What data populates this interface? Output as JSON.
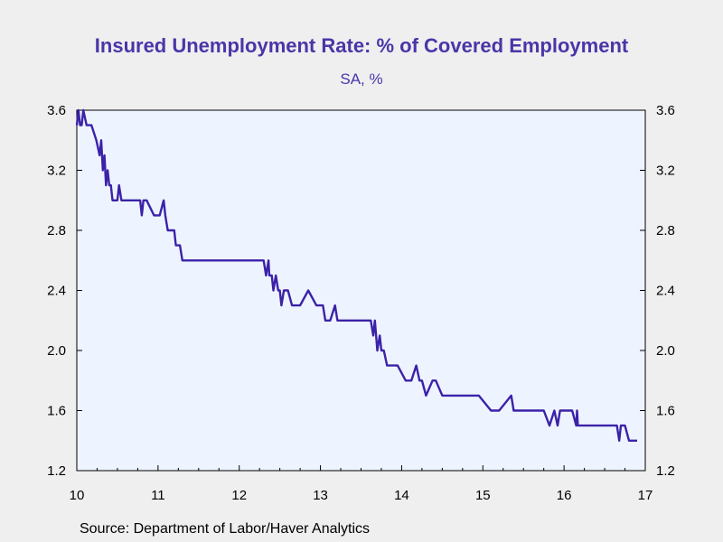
{
  "chart_data": {
    "type": "line",
    "title": "Insured Unemployment Rate: % of Covered Employment",
    "subtitle": "SA, %",
    "source": "Source:  Department of Labor/Haver Analytics",
    "xlabel": "",
    "ylabel": "",
    "xlim": [
      2010,
      2017
    ],
    "ylim": [
      1.2,
      3.6
    ],
    "x_ticks": [
      "10",
      "11",
      "12",
      "13",
      "14",
      "15",
      "16",
      "17"
    ],
    "y_ticks": [
      "1.2",
      "1.6",
      "2.0",
      "2.4",
      "2.8",
      "3.2",
      "3.6"
    ],
    "grid": false,
    "line_color": "#3b22a8",
    "plot_background": "#eef4ff",
    "series": [
      {
        "x": [
          2010.0,
          2010.02,
          2010.04,
          2010.06,
          2010.08,
          2010.12,
          2010.14,
          2010.16,
          2010.18,
          2010.24,
          2010.28,
          2010.3,
          2010.32,
          2010.34,
          2010.36,
          2010.38,
          2010.4,
          2010.42,
          2010.44,
          2010.46,
          2010.48,
          2010.5,
          2010.52,
          2010.55,
          2010.62,
          2010.7,
          2010.78,
          2010.8,
          2010.82,
          2010.86,
          2010.95,
          2011.02,
          2011.07,
          2011.09,
          2011.12,
          2011.2,
          2011.22,
          2011.25,
          2011.27,
          2011.3,
          2011.33,
          2011.35,
          2011.38,
          2011.4,
          2011.42,
          2011.47,
          2011.5,
          2011.52,
          2011.55,
          2011.6,
          2011.65,
          2011.75,
          2011.9,
          2012.1,
          2012.3,
          2012.33,
          2012.36,
          2012.37,
          2012.4,
          2012.42,
          2012.45,
          2012.48,
          2012.5,
          2012.52,
          2012.55,
          2012.6,
          2012.65,
          2012.68,
          2012.72,
          2012.75,
          2012.85,
          2012.95,
          2013.0,
          2013.03,
          2013.06,
          2013.12,
          2013.18,
          2013.21,
          2013.24,
          2013.27,
          2013.35,
          2013.5,
          2013.62,
          2013.65,
          2013.67,
          2013.7,
          2013.73,
          2013.75,
          2013.78,
          2013.82,
          2013.88,
          2013.95,
          2014.05,
          2014.12,
          2014.18,
          2014.22,
          2014.25,
          2014.3,
          2014.38,
          2014.42,
          2014.5,
          2014.55,
          2014.58,
          2014.65,
          2014.8,
          2014.95,
          2015.1,
          2015.2,
          2015.35,
          2015.38,
          2015.4,
          2015.45,
          2015.55,
          2015.65,
          2015.75,
          2015.82,
          2015.88,
          2015.92,
          2015.95,
          2016.05,
          2016.1,
          2016.15,
          2016.16,
          2016.17,
          2016.2,
          2016.3,
          2016.4,
          2016.5,
          2016.6,
          2016.65,
          2016.68,
          2016.7,
          2016.75,
          2016.8,
          2016.9
        ],
        "y": [
          3.5,
          3.6,
          3.5,
          3.5,
          3.6,
          3.5,
          3.5,
          3.5,
          3.5,
          3.4,
          3.3,
          3.4,
          3.2,
          3.3,
          3.1,
          3.2,
          3.1,
          3.1,
          3.0,
          3.0,
          3.0,
          3.0,
          3.1,
          3.0,
          3.0,
          3.0,
          3.0,
          2.9,
          3.0,
          3.0,
          2.9,
          2.9,
          3.0,
          2.9,
          2.8,
          2.8,
          2.7,
          2.7,
          2.7,
          2.6,
          2.6,
          2.6,
          2.6,
          2.6,
          2.6,
          2.6,
          2.6,
          2.6,
          2.6,
          2.6,
          2.6,
          2.6,
          2.6,
          2.6,
          2.6,
          2.5,
          2.6,
          2.5,
          2.5,
          2.4,
          2.5,
          2.4,
          2.4,
          2.3,
          2.4,
          2.4,
          2.3,
          2.3,
          2.3,
          2.3,
          2.4,
          2.3,
          2.3,
          2.3,
          2.2,
          2.2,
          2.3,
          2.2,
          2.2,
          2.2,
          2.2,
          2.2,
          2.2,
          2.1,
          2.2,
          2.0,
          2.1,
          2.0,
          2.0,
          1.9,
          1.9,
          1.9,
          1.8,
          1.8,
          1.9,
          1.8,
          1.8,
          1.7,
          1.8,
          1.8,
          1.7,
          1.7,
          1.7,
          1.7,
          1.7,
          1.7,
          1.6,
          1.6,
          1.7,
          1.6,
          1.6,
          1.6,
          1.6,
          1.6,
          1.6,
          1.5,
          1.6,
          1.5,
          1.6,
          1.6,
          1.6,
          1.5,
          1.6,
          1.5,
          1.5,
          1.5,
          1.5,
          1.5,
          1.5,
          1.5,
          1.4,
          1.5,
          1.5,
          1.4,
          1.4
        ]
      }
    ]
  }
}
